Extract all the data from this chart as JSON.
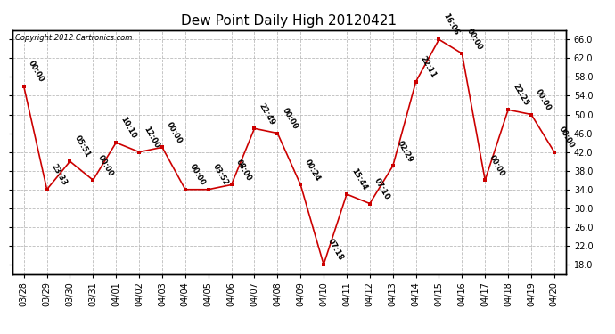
{
  "title": "Dew Point Daily High 20120421",
  "copyright": "Copyright 2012 Cartronics.com",
  "dates": [
    "03/28",
    "03/29",
    "03/30",
    "03/31",
    "04/01",
    "04/02",
    "04/03",
    "04/04",
    "04/05",
    "04/06",
    "04/07",
    "04/08",
    "04/09",
    "04/10",
    "04/11",
    "04/12",
    "04/13",
    "04/14",
    "04/15",
    "04/16",
    "04/17",
    "04/18",
    "04/19",
    "04/20"
  ],
  "values": [
    56.0,
    34.0,
    40.0,
    36.0,
    44.0,
    42.0,
    43.0,
    34.0,
    34.0,
    35.0,
    47.0,
    46.0,
    35.0,
    18.0,
    33.0,
    31.0,
    39.0,
    57.0,
    66.0,
    63.0,
    36.0,
    51.0,
    50.0,
    42.0
  ],
  "annotations": [
    "00:00",
    "23:33",
    "05:51",
    "00:00",
    "10:10",
    "12:00",
    "00:00",
    "00:00",
    "03:52",
    "08:00",
    "22:49",
    "00:00",
    "00:24",
    "07:18",
    "15:44",
    "07:10",
    "02:29",
    "22:11",
    "16:06",
    "00:00",
    "00:00",
    "22:25",
    "00:00",
    "00:00"
  ],
  "ylim": [
    16.0,
    68.0
  ],
  "yticks": [
    18.0,
    22.0,
    26.0,
    30.0,
    34.0,
    38.0,
    42.0,
    46.0,
    50.0,
    54.0,
    58.0,
    62.0,
    66.0
  ],
  "line_color": "#cc0000",
  "marker_color": "#cc0000",
  "bg_color": "#ffffff",
  "grid_color": "#bbbbbb",
  "title_fontsize": 11,
  "tick_fontsize": 7,
  "annotation_fontsize": 6
}
